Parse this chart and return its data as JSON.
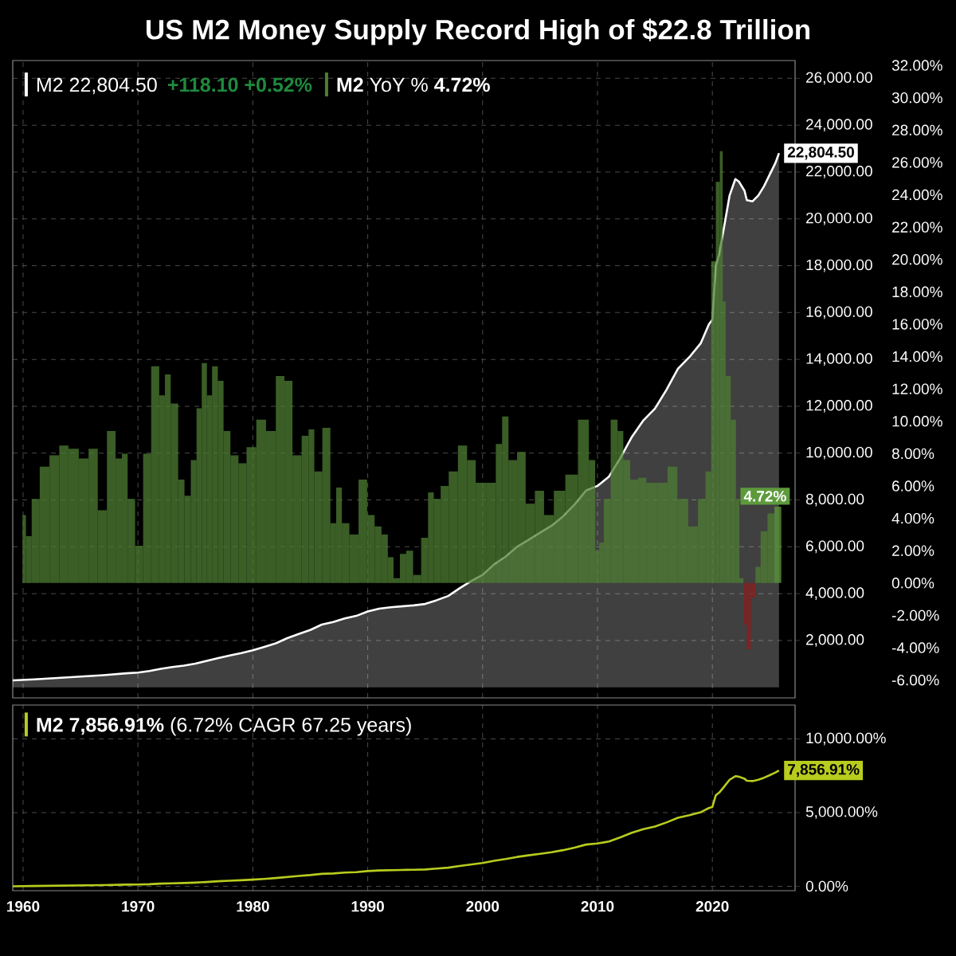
{
  "chart_data": [
    {
      "type": "area",
      "title": "US M2 Money Supply Record High of $22.8 Trillion",
      "xlim": [
        1959.1,
        2027.2
      ],
      "xticks": [
        1960,
        1970,
        1980,
        1990,
        2000,
        2010,
        2020
      ],
      "ylim": [
        -450,
        26760
      ],
      "yticks": [
        {
          "value": 2000,
          "label": "2,000.00"
        },
        {
          "value": 4000,
          "label": "4,000.00"
        },
        {
          "value": 6000,
          "label": "6,000.00"
        },
        {
          "value": 8000,
          "label": "8,000.00"
        },
        {
          "value": 10000,
          "label": "10,000.00"
        },
        {
          "value": 12000,
          "label": "12,000.00"
        },
        {
          "value": 14000,
          "label": "14,000.00"
        },
        {
          "value": 16000,
          "label": "16,000.00"
        },
        {
          "value": 18000,
          "label": "18,000.00"
        },
        {
          "value": 20000,
          "label": "20,000.00"
        },
        {
          "value": 22000,
          "label": "22,000.00"
        },
        {
          "value": 24000,
          "label": "24,000.00"
        },
        {
          "value": 26000,
          "label": "26,000.00"
        }
      ],
      "y2lim": [
        -7.1,
        32.3
      ],
      "y2ticks": [
        {
          "value": -6,
          "label": "-6.00%"
        },
        {
          "value": -4,
          "label": "-4.00%"
        },
        {
          "value": -2,
          "label": "-2.00%"
        },
        {
          "value": 0,
          "label": "0.00%"
        },
        {
          "value": 2,
          "label": "2.00%"
        },
        {
          "value": 4,
          "label": "4.00%"
        },
        {
          "value": 6,
          "label": "6.00%"
        },
        {
          "value": 8,
          "label": "8.00%"
        },
        {
          "value": 10,
          "label": "10.00%"
        },
        {
          "value": 12,
          "label": "12.00%"
        },
        {
          "value": 14,
          "label": "14.00%"
        },
        {
          "value": 16,
          "label": "16.00%"
        },
        {
          "value": 18,
          "label": "18.00%"
        },
        {
          "value": 20,
          "label": "20.00%"
        },
        {
          "value": 22,
          "label": "22.00%"
        },
        {
          "value": 24,
          "label": "24.00%"
        },
        {
          "value": 26,
          "label": "26.00%"
        },
        {
          "value": 28,
          "label": "28.00%"
        },
        {
          "value": 30,
          "label": "30.00%"
        },
        {
          "value": 32,
          "label": "32.00%"
        }
      ],
      "grid": true,
      "legend": "top left",
      "tick_labels": "y",
      "annotations": [
        "+118.10 +0.52%"
      ],
      "series": [
        {
          "name": "M2 22,804.50",
          "type": "area",
          "color": "#ffffff",
          "x": [
            1959.1,
            1961,
            1963,
            1965,
            1967,
            1969,
            1970,
            1971,
            1972,
            1973,
            1974,
            1975,
            1976,
            1977,
            1978,
            1979,
            1980,
            1981,
            1982,
            1983,
            1984,
            1985,
            1986,
            1987,
            1988,
            1989,
            1990,
            1991,
            1992,
            1993,
            1994,
            1995,
            1996,
            1997,
            1998,
            1999,
            2000,
            2001,
            2002,
            2003,
            2004,
            2005,
            2006,
            2007,
            2008,
            2009,
            2010,
            2011,
            2012,
            2013,
            2014,
            2015,
            2016,
            2017,
            2018,
            2019,
            2019.7,
            2020.0,
            2020.3,
            2020.6,
            2021,
            2021.5,
            2022,
            2022.3,
            2022.8,
            2023,
            2023.5,
            2024,
            2024.5,
            2025,
            2025.5,
            2025.8
          ],
          "values": [
            300,
            340,
            400,
            460,
            520,
            600,
            630,
            700,
            790,
            870,
            930,
            1010,
            1130,
            1250,
            1360,
            1460,
            1580,
            1730,
            1880,
            2100,
            2280,
            2450,
            2680,
            2790,
            2940,
            3050,
            3240,
            3360,
            3420,
            3460,
            3500,
            3560,
            3720,
            3900,
            4230,
            4540,
            4800,
            5250,
            5580,
            6000,
            6300,
            6600,
            6900,
            7300,
            7800,
            8400,
            8600,
            9000,
            9800,
            10700,
            11400,
            11900,
            12700,
            13600,
            14100,
            14700,
            15500,
            15700,
            18000,
            18500,
            19600,
            21000,
            21700,
            21600,
            21200,
            20800,
            20750,
            21000,
            21400,
            21900,
            22400,
            22804.5
          ],
          "value_labels": [
            null,
            null,
            null,
            null,
            null,
            null,
            null,
            null,
            null,
            null,
            null,
            null,
            null,
            null,
            null,
            null,
            null,
            null,
            null,
            null,
            null,
            null,
            null,
            null,
            null,
            null,
            null,
            null,
            null,
            null,
            null,
            null,
            null,
            null,
            null,
            null,
            null,
            null,
            null,
            null,
            null,
            null,
            null,
            null,
            null,
            null,
            null,
            null,
            null,
            null,
            null,
            null,
            null,
            null,
            null,
            null,
            null,
            null,
            null,
            null,
            null,
            null,
            null,
            null,
            null,
            null,
            null,
            null,
            null,
            null,
            null,
            "22,804.50"
          ]
        },
        {
          "name": "**M2** YoY % **4.72%**",
          "type": "bar",
          "axis": "y2",
          "x": [
            1960.1,
            1960.4,
            1961.1,
            1961.8,
            1962.8,
            1963.5,
            1964.4,
            1965.3,
            1966.1,
            1966.9,
            1967.7,
            1968.4,
            1968.8,
            1969.4,
            1970.1,
            1970.8,
            1971.5,
            1972.2,
            1972.5,
            1973.2,
            1973.8,
            1974.3,
            1974.9,
            1975.3,
            1975.8,
            1976.2,
            1976.7,
            1977.2,
            1977.7,
            1978.4,
            1979.1,
            1979.8,
            1980.8,
            1981.5,
            1982.5,
            1983.0,
            1983.9,
            1984.6,
            1985.1,
            1985.6,
            1986.5,
            1987.0,
            1987.5,
            1988.0,
            1988.8,
            1989.6,
            1990.3,
            1990.9,
            1991.5,
            1992.0,
            1992.5,
            1993.1,
            1993.6,
            1994.3,
            1995.0,
            1995.5,
            1996.0,
            1996.7,
            1997.4,
            1998.3,
            1999.0,
            1999.8,
            2000.8,
            2001.5,
            2001.9,
            2002.6,
            2003.4,
            2004.1,
            2005.0,
            2005.7,
            2006.7,
            2007.7,
            2008.9,
            2009.6,
            2010.0,
            2010.3,
            2010.8,
            2011.5,
            2012.0,
            2012.5,
            2013.2,
            2013.9,
            2014.6,
            2015.7,
            2016.5,
            2017.4,
            2018.4,
            2019.1,
            2019.7,
            2020.1,
            2020.5,
            2020.8,
            2021.0,
            2021.3,
            2021.9,
            2022.2,
            2022.5,
            2022.9,
            2023.1,
            2023.6,
            2023.9,
            2024.5,
            2025.1,
            2025.7
          ],
          "values": [
            4.2,
            2.9,
            5.2,
            7.2,
            7.9,
            8.5,
            8.3,
            7.7,
            8.3,
            4.5,
            9.4,
            7.7,
            8.0,
            5.2,
            2.3,
            8.0,
            13.4,
            11.6,
            12.9,
            11.1,
            6.4,
            5.4,
            7.6,
            10.8,
            13.6,
            11.6,
            13.4,
            12.5,
            9.4,
            7.9,
            7.4,
            8.4,
            10.1,
            9.4,
            12.8,
            12.5,
            7.9,
            9.1,
            9.5,
            6.9,
            9.6,
            3.7,
            5.9,
            3.7,
            3.0,
            6.4,
            4.2,
            3.5,
            3.0,
            1.6,
            0.3,
            1.8,
            2.0,
            0.5,
            2.8,
            5.6,
            5.2,
            6.0,
            6.9,
            8.5,
            7.6,
            6.2,
            6.2,
            8.6,
            10.3,
            7.6,
            8.1,
            4.9,
            5.7,
            4.2,
            5.7,
            6.7,
            10.1,
            7.6,
            2.0,
            2.5,
            5.2,
            10.1,
            9.4,
            7.6,
            6.4,
            6.5,
            6.2,
            6.2,
            7.2,
            5.2,
            3.5,
            5.2,
            6.9,
            19.9,
            24.8,
            26.7,
            17.4,
            12.8,
            10.1,
            5.2,
            0.3,
            -2.6,
            -4.1,
            -0.9,
            1.0,
            3.2,
            4.3,
            4.72
          ],
          "colors": [
            "#4e7d33",
            "#4e7d33",
            "#4e7d33",
            "#4e7d33",
            "#4e7d33",
            "#4e7d33",
            "#4e7d33",
            "#4e7d33",
            "#4e7d33",
            "#4e7d33",
            "#4e7d33",
            "#4e7d33",
            "#4e7d33",
            "#4e7d33",
            "#4e7d33",
            "#4e7d33",
            "#4e7d33",
            "#4e7d33",
            "#4e7d33",
            "#4e7d33",
            "#4e7d33",
            "#4e7d33",
            "#4e7d33",
            "#4e7d33",
            "#4e7d33",
            "#4e7d33",
            "#4e7d33",
            "#4e7d33",
            "#4e7d33",
            "#4e7d33",
            "#4e7d33",
            "#4e7d33",
            "#4e7d33",
            "#4e7d33",
            "#4e7d33",
            "#4e7d33",
            "#4e7d33",
            "#4e7d33",
            "#4e7d33",
            "#4e7d33",
            "#4e7d33",
            "#4e7d33",
            "#4e7d33",
            "#4e7d33",
            "#4e7d33",
            "#4e7d33",
            "#4e7d33",
            "#4e7d33",
            "#4e7d33",
            "#4e7d33",
            "#4e7d33",
            "#4e7d33",
            "#4e7d33",
            "#4e7d33",
            "#4e7d33",
            "#4e7d33",
            "#4e7d33",
            "#4e7d33",
            "#4e7d33",
            "#4e7d33",
            "#4e7d33",
            "#4e7d33",
            "#4e7d33",
            "#4e7d33",
            "#4e7d33",
            "#4e7d33",
            "#4e7d33",
            "#4e7d33",
            "#4e7d33",
            "#4e7d33",
            "#4e7d33",
            "#4e7d33",
            "#4e7d33",
            "#4e7d33",
            "#4e7d33",
            "#4e7d33",
            "#4e7d33",
            "#4e7d33",
            "#4e7d33",
            "#4e7d33",
            "#4e7d33",
            "#4e7d33",
            "#4e7d33",
            "#4e7d33",
            "#4e7d33",
            "#4e7d33",
            "#4e7d33",
            "#4e7d33",
            "#4e7d33",
            "#4e7d33",
            "#4e7d33",
            "#4e7d33",
            "#4e7d33",
            "#4e7d33",
            "#4e7d33",
            "#4e7d33",
            "#4e7d33",
            "#8b1c1c",
            "#8b1c1c",
            "#8b1c1c",
            "#4e7d33",
            "#4e7d33",
            "#4e7d33",
            "#5d9a3c"
          ],
          "value_labels": [
            null,
            null,
            null,
            null,
            null,
            null,
            null,
            null,
            null,
            null,
            null,
            null,
            null,
            null,
            null,
            null,
            null,
            null,
            null,
            null,
            null,
            null,
            null,
            null,
            null,
            null,
            null,
            null,
            null,
            null,
            null,
            null,
            null,
            null,
            null,
            null,
            null,
            null,
            null,
            null,
            null,
            null,
            null,
            null,
            null,
            null,
            null,
            null,
            null,
            null,
            null,
            null,
            null,
            null,
            null,
            null,
            null,
            null,
            null,
            null,
            null,
            null,
            null,
            null,
            null,
            null,
            null,
            null,
            null,
            null,
            null,
            null,
            null,
            null,
            null,
            null,
            null,
            null,
            null,
            null,
            null,
            null,
            null,
            null,
            null,
            null,
            null,
            null,
            null,
            null,
            null,
            null,
            null,
            null,
            null,
            null,
            null,
            null,
            null,
            null,
            null,
            null,
            null,
            "4.72%"
          ]
        }
      ]
    },
    {
      "type": "line",
      "xlim": [
        1959.1,
        2027.2
      ],
      "xticks": [
        1960,
        1970,
        1980,
        1990,
        2000,
        2010,
        2020
      ],
      "ylim": [
        -300,
        12300
      ],
      "yticks": [
        {
          "value": 0,
          "label": "0.00%"
        },
        {
          "value": 5000,
          "label": "5,000.00%"
        },
        {
          "value": 10000,
          "label": "10,000.00%"
        }
      ],
      "grid": true,
      "legend": "top left",
      "series": [
        {
          "name": "**M2 7,856.91%** (6.72% CAGR 67.25 years)",
          "color": "#b8cc1e",
          "x": [
            1959.1,
            1961,
            1963,
            1965,
            1967,
            1969,
            1970,
            1971,
            1972,
            1973,
            1974,
            1975,
            1976,
            1977,
            1978,
            1979,
            1980,
            1981,
            1982,
            1983,
            1984,
            1985,
            1986,
            1987,
            1988,
            1989,
            1990,
            1991,
            1992,
            1993,
            1994,
            1995,
            1996,
            1997,
            1998,
            1999,
            2000,
            2001,
            2002,
            2003,
            2004,
            2005,
            2006,
            2007,
            2008,
            2009,
            2010,
            2011,
            2012,
            2013,
            2014,
            2015,
            2016,
            2017,
            2018,
            2019,
            2019.7,
            2020.0,
            2020.3,
            2020.6,
            2021,
            2021.5,
            2022,
            2022.3,
            2022.8,
            2023,
            2023.5,
            2024,
            2024.5,
            2025,
            2025.5,
            2025.8
          ],
          "values": [
            0,
            20,
            40,
            60,
            80,
            110,
            120,
            140,
            180,
            200,
            220,
            250,
            290,
            340,
            380,
            410,
            450,
            500,
            560,
            630,
            700,
            760,
            840,
            870,
            930,
            960,
            1030,
            1070,
            1090,
            1110,
            1120,
            1140,
            1200,
            1260,
            1380,
            1480,
            1580,
            1730,
            1850,
            1990,
            2100,
            2200,
            2310,
            2450,
            2620,
            2830,
            2900,
            3040,
            3320,
            3630,
            3880,
            4050,
            4330,
            4650,
            4820,
            5030,
            5310,
            5380,
            6180,
            6360,
            6740,
            7230,
            7470,
            7440,
            7300,
            7160,
            7140,
            7230,
            7370,
            7540,
            7720,
            7856.91
          ],
          "value_labels": [
            null,
            null,
            null,
            null,
            null,
            null,
            null,
            null,
            null,
            null,
            null,
            null,
            null,
            null,
            null,
            null,
            null,
            null,
            null,
            null,
            null,
            null,
            null,
            null,
            null,
            null,
            null,
            null,
            null,
            null,
            null,
            null,
            null,
            null,
            null,
            null,
            null,
            null,
            null,
            null,
            null,
            null,
            null,
            null,
            null,
            null,
            null,
            null,
            null,
            null,
            null,
            null,
            null,
            null,
            null,
            null,
            null,
            null,
            null,
            null,
            null,
            null,
            null,
            null,
            null,
            null,
            null,
            null,
            null,
            null,
            null,
            "7,856.91%"
          ]
        }
      ]
    }
  ]
}
